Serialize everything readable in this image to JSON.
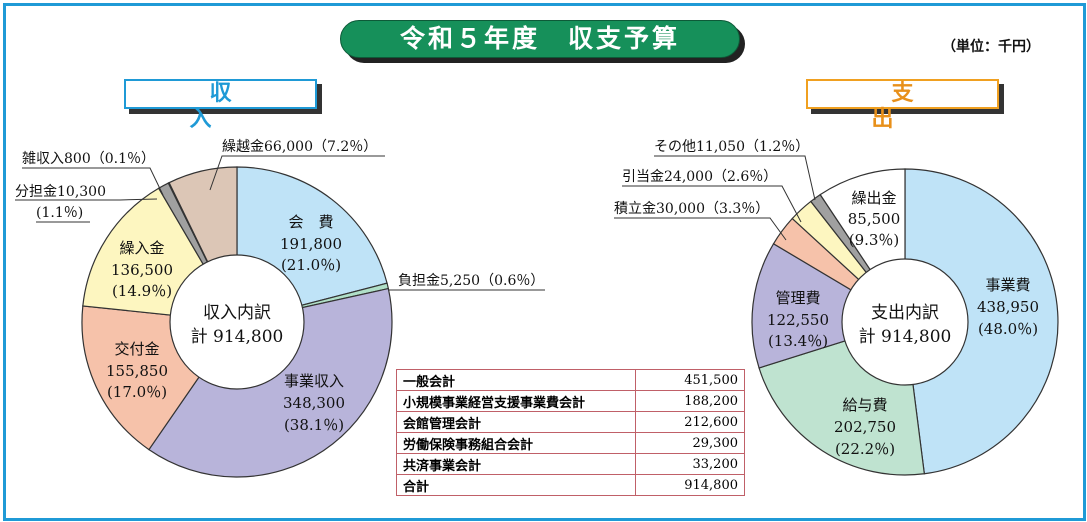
{
  "title": "令和５年度　収支予算",
  "unit": "（単位：千円）",
  "colors": {
    "frame": "#1f9ad6",
    "title_bg": "#16905a",
    "income_head": "#1f9ad6",
    "expense_head": "#f0a020",
    "table_border": "#c06068"
  },
  "chart_data": [
    {
      "type": "pie",
      "title": "収　　入",
      "center_label": [
        "収入内訳",
        "計 914,800"
      ],
      "total": 914800,
      "slices": [
        {
          "label": "会　費",
          "value": 191800,
          "percent": "(21.0％)",
          "value_text": "191,800",
          "color": "#bfe3f7"
        },
        {
          "label": "負担金",
          "value": 5250,
          "percent": "（0.6％）",
          "value_text": "5,250",
          "color": "#b0e0c8"
        },
        {
          "label": "事業収入",
          "value": 348300,
          "percent": "(38.1％)",
          "value_text": "348,300",
          "color": "#b8b4da"
        },
        {
          "label": "交付金",
          "value": 155850,
          "percent": "(17.0％)",
          "value_text": "155,850",
          "color": "#f6c2aa"
        },
        {
          "label": "繰入金",
          "value": 136500,
          "percent": "(14.9％)",
          "value_text": "136,500",
          "color": "#fdf6c0"
        },
        {
          "label": "分担金",
          "value": 10300,
          "percent": "(1.1％)",
          "value_text": "10,300",
          "color": "#a0a0a0"
        },
        {
          "label": "雑収入",
          "value": 800,
          "percent": "（0.1％）",
          "value_text": "800",
          "color": "#d0d0d0"
        },
        {
          "label": "繰越金",
          "value": 66000,
          "percent": "（7.2％）",
          "value_text": "66,000",
          "color": "#dcc6b6"
        }
      ]
    },
    {
      "type": "pie",
      "title": "支　　出",
      "center_label": [
        "支出内訳",
        "計 914,800"
      ],
      "total": 914800,
      "slices": [
        {
          "label": "事業費",
          "value": 438950,
          "percent": "(48.0％)",
          "value_text": "438,950",
          "color": "#bfe3f7"
        },
        {
          "label": "給与費",
          "value": 202750,
          "percent": "(22.2％)",
          "value_text": "202,750",
          "color": "#bfe3d0"
        },
        {
          "label": "管理費",
          "value": 122550,
          "percent": "(13.4％)",
          "value_text": "122,550",
          "color": "#b8b4da"
        },
        {
          "label": "積立金",
          "value": 30000,
          "percent": "（3.3％）",
          "value_text": "30,000",
          "color": "#f6c2aa"
        },
        {
          "label": "引当金",
          "value": 24000,
          "percent": "（2.6％）",
          "value_text": "24,000",
          "color": "#fdf6c0"
        },
        {
          "label": "その他",
          "value": 11050,
          "percent": "（1.2％）",
          "value_text": "11,050",
          "color": "#a0a0a0"
        },
        {
          "label": "繰出金",
          "value": 85500,
          "percent": "(9.3％)",
          "value_text": "85,500",
          "color": "#ffffff"
        }
      ]
    },
    {
      "type": "table",
      "rows": [
        {
          "name": "一般会計",
          "value": "451,500"
        },
        {
          "name": "小規模事業経営支援事業費会計",
          "value": "188,200"
        },
        {
          "name": "会館管理会計",
          "value": "212,600"
        },
        {
          "name": "労働保険事務組合会計",
          "value": "29,300"
        },
        {
          "name": "共済事業会計",
          "value": "33,200"
        },
        {
          "name": "合計",
          "value": "914,800"
        }
      ]
    }
  ]
}
